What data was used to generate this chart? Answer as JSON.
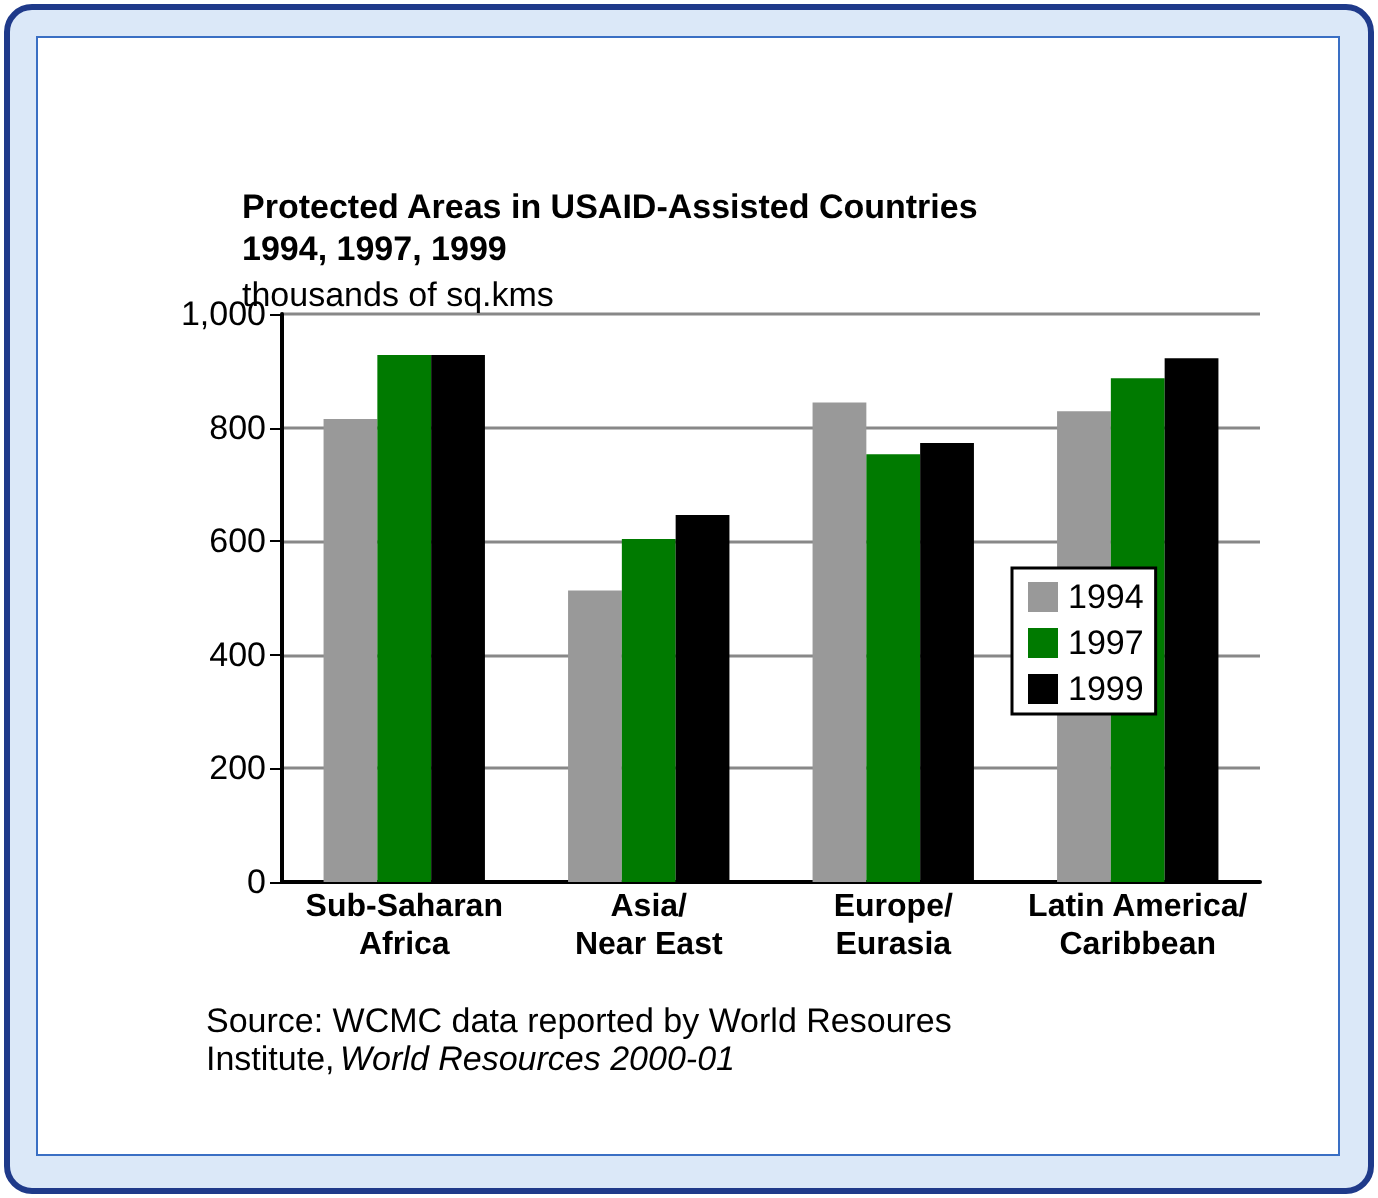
{
  "chart_data": {
    "type": "bar",
    "title": "Protected Areas in USAID-Assisted Countries\n1994, 1997, 1999",
    "ylabel": "thousands of sq.kms",
    "categories": [
      "Sub-Saharan\nAfrica",
      "Asia/\nNear East",
      "Europe/\nEurasia",
      "Latin America/\nCaribbean"
    ],
    "series": [
      {
        "name": "1994",
        "color": "#999999",
        "values": [
          815,
          513,
          844,
          829
        ]
      },
      {
        "name": "1997",
        "color": "#007a00",
        "values": [
          928,
          604,
          753,
          887
        ]
      },
      {
        "name": "1999",
        "color": "#000000",
        "values": [
          928,
          646,
          773,
          922
        ]
      }
    ],
    "ylim": [
      0,
      1000
    ],
    "yticks": [
      0,
      {
        "value": 200,
        "label": "200"
      },
      400,
      600,
      800,
      {
        "value": 1000,
        "label": "1,000"
      }
    ],
    "grid": "y",
    "legend": "right",
    "annotations": [
      "Source: WCMC data reported by World Resoures Institute,",
      "World Resources 2000-01"
    ]
  }
}
